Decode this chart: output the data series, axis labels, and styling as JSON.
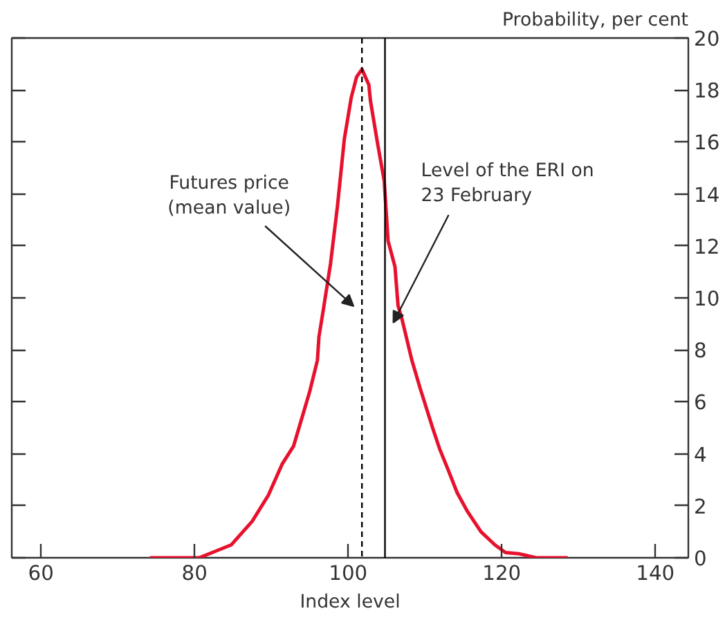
{
  "chart_data": {
    "type": "line",
    "ylabel": "Probability, per cent",
    "xlabel": "Index level",
    "xlim": [
      56.2,
      144.3
    ],
    "ylim": [
      0,
      20
    ],
    "xticks": [
      60,
      80,
      100,
      120,
      140
    ],
    "yticks": [
      0,
      2,
      4,
      6,
      8,
      10,
      12,
      14,
      16,
      18,
      20
    ],
    "grid": false,
    "marker": "none",
    "line_style": "solid",
    "series": [
      {
        "color": "#e8112d",
        "x": [
          74.2,
          80.6,
          82.3,
          84.8,
          87.5,
          89.6,
          91.4,
          92.9,
          94.4,
          95.0,
          96.0,
          96.2,
          96.8,
          97.7,
          98.6,
          99.5,
          100.4,
          101.1,
          101.8,
          102.7,
          102.9,
          103.8,
          104.7,
          105.2,
          106.1,
          106.5,
          107.0,
          108.3,
          109.4,
          111.0,
          111.9,
          113.0,
          114.2,
          115.5,
          117.3,
          119.1,
          120.5,
          122.3,
          124.5,
          128.6
        ],
        "values": [
          0,
          0,
          0.2,
          0.5,
          1.4,
          2.4,
          3.6,
          4.3,
          5.8,
          6.4,
          7.6,
          8.5,
          9.6,
          11.3,
          13.5,
          16.1,
          17.7,
          18.5,
          18.8,
          18.2,
          17.6,
          16.0,
          14.5,
          12.2,
          11.2,
          9.7,
          9.2,
          7.6,
          6.5,
          5.0,
          4.2,
          3.4,
          2.5,
          1.8,
          1.0,
          0.5,
          0.2,
          0.15,
          0,
          0
        ]
      }
    ],
    "ref_lines": [
      {
        "axis": "x",
        "value": 101.8,
        "line_style": "dashed",
        "color": "#000000",
        "label": "Futures price\n(mean value)"
      },
      {
        "axis": "x",
        "value": 104.8,
        "line_style": "solid",
        "color": "#000000",
        "label": "Level of the ERI on\n 23 February"
      }
    ]
  }
}
